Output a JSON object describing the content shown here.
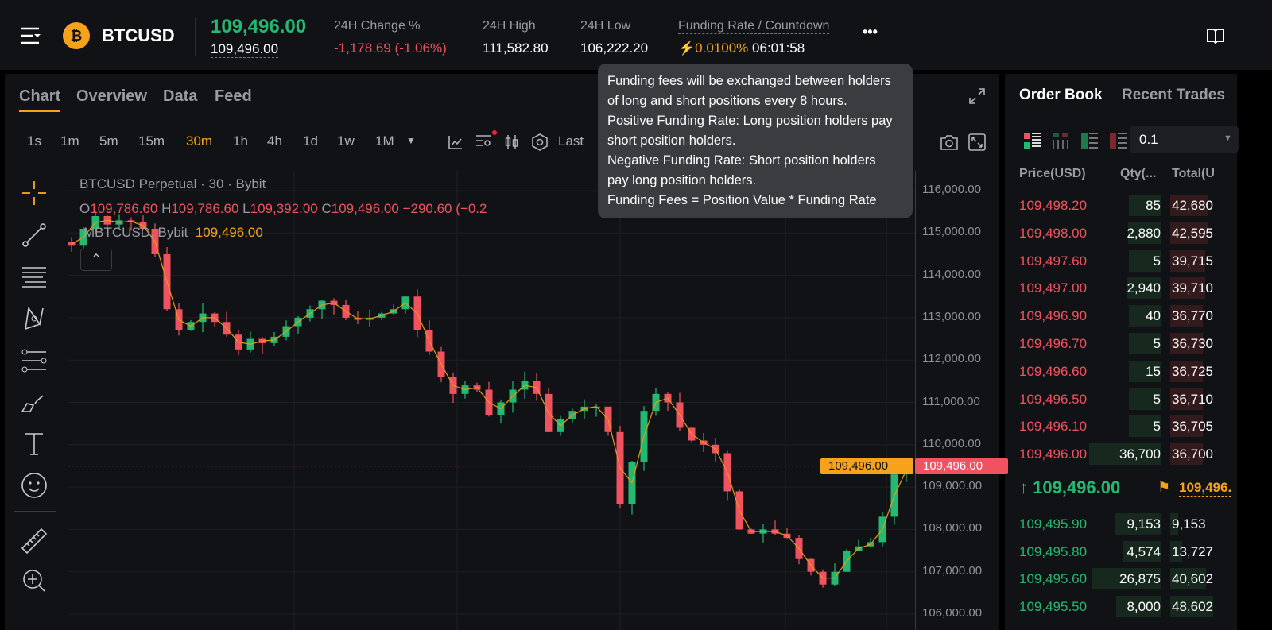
{
  "header": {
    "symbol": "BTCUSD",
    "last_price": "109,496.00",
    "mark_price": "109,496.00",
    "stats": [
      {
        "label": "24H Change %",
        "value": "-1,178.69 (-1.06%)"
      },
      {
        "label": "24H High",
        "value": "111,582.80"
      },
      {
        "label": "24H Low",
        "value": "106,222.20"
      },
      {
        "label": "Funding Rate / Countdown",
        "value": "0.0100%",
        "countdown": "06:01:58"
      }
    ],
    "more": "•••"
  },
  "tabs": [
    "Chart",
    "Overview",
    "Data",
    "Feed"
  ],
  "intervals": [
    "1s",
    "1m",
    "5m",
    "15m",
    "30m",
    "1h",
    "4h",
    "1d",
    "1w",
    "1M"
  ],
  "active_interval": "30m",
  "toolbar_last": "Last",
  "chart": {
    "title": "BTCUSD Perpetual · 30 · Bybit",
    "ohlc": {
      "o_label": "O",
      "o": "109,786.60",
      "h_label": "H",
      "h": "109,786.60",
      "l_label": "L",
      "l": "109,392.00",
      "c_label": "C",
      "c": "109,496.00",
      "change": "−290.60 (−0.2"
    },
    "mark_label": "MBTCUSD, Bybit",
    "mark_value": "109,496.00",
    "y_ticks": [
      "116,000.00",
      "115,000.00",
      "114,000.00",
      "113,000.00",
      "112,000.00",
      "111,000.00",
      "110,000.00",
      "109,000.00",
      "108,000.00",
      "107,000.00",
      "106,000.00"
    ],
    "last_tag": "109,496.00",
    "mark_tag": "109,496.00",
    "closes": [
      114700,
      115100,
      115400,
      115200,
      115300,
      115250,
      115100,
      114500,
      113200,
      112700,
      112900,
      113100,
      112900,
      112600,
      112250,
      112500,
      112400,
      112550,
      112800,
      113000,
      113200,
      113400,
      113300,
      113000,
      112950,
      113000,
      113100,
      113200,
      113500,
      112700,
      112200,
      111600,
      111200,
      111400,
      111300,
      110700,
      111000,
      111300,
      111500,
      111200,
      110300,
      110600,
      110800,
      110900,
      110900,
      110300,
      108600,
      109600,
      110800,
      111200,
      111000,
      110400,
      110100,
      110000,
      109800,
      108900,
      108000,
      107900,
      108000,
      107900,
      107800,
      107300,
      107000,
      106700,
      107000,
      107500,
      107600,
      107700,
      108300,
      109300,
      109496
    ],
    "colors": {
      "up": "#25b870",
      "down": "#f0525f",
      "ma": "#e59a1a"
    }
  },
  "tooltip": [
    "Funding fees will be exchanged between holders",
    "of long and short positions every 8 hours.",
    "Positive Funding Rate: Long position holders pay",
    "short position holders.",
    "Negative Funding Rate: Short position holders",
    "pay long position holders.",
    "Funding Fees = Position Value * Funding Rate"
  ],
  "orderbook": {
    "tabs": [
      "Order Book",
      "Recent Trades"
    ],
    "precision": "0.1",
    "columns": [
      "Price(USD)",
      "Qty(...",
      "Total(U"
    ],
    "asks": [
      [
        "109,498.20",
        "85",
        "42,680"
      ],
      [
        "109,498.00",
        "2,880",
        "42,595"
      ],
      [
        "109,497.60",
        "5",
        "39,715"
      ],
      [
        "109,497.00",
        "2,940",
        "39,710"
      ],
      [
        "109,496.90",
        "40",
        "36,770"
      ],
      [
        "109,496.70",
        "5",
        "36,730"
      ],
      [
        "109,496.60",
        "15",
        "36,725"
      ],
      [
        "109,496.50",
        "5",
        "36,710"
      ],
      [
        "109,496.10",
        "5",
        "36,705"
      ],
      [
        "109,496.00",
        "36,700",
        "36,700"
      ]
    ],
    "mid_price": "109,496.00",
    "mark_price": "109,496.",
    "bids": [
      [
        "109,495.90",
        "9,153",
        "9,153"
      ],
      [
        "109,495.80",
        "4,574",
        "13,727"
      ],
      [
        "109,495.60",
        "26,875",
        "40,602"
      ],
      [
        "109,495.50",
        "8,000",
        "48,602"
      ]
    ]
  }
}
